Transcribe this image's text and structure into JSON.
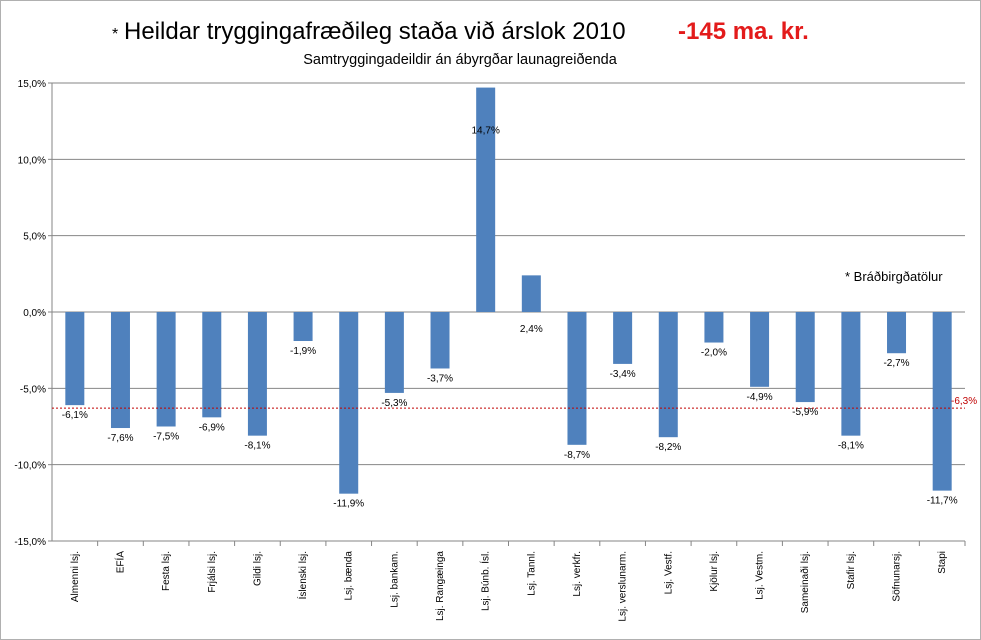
{
  "chart_data": {
    "type": "bar",
    "title_marker": "*",
    "title": "Heildar tryggingafræðileg staða við árslok 2010",
    "title_total": "-145 ma. kr.",
    "subtitle": "Samtryggingadeildir án ábyrgðar launagreiðenda",
    "note": "* Bráðbirgðatölur",
    "categories": [
      "Almenni lsj.",
      "EFÍA",
      "Festa lsj.",
      "Frjálsi lsj.",
      "Gildi lsj.",
      "Íslenski lsj.",
      "Lsj. bænda",
      "Lsj. bankam.",
      "Lsj. Rangæinga",
      "Lsj. Búnb. Ísl.",
      "Lsj. Tannl.",
      "Lsj. verkfr.",
      "Lsj. verslunarm.",
      "Lsj. Vestf.",
      "Kjölur lsj.",
      "Lsj. Vestm.",
      "Sameinaði lsj.",
      "Stafir lsj.",
      "Söfnunarsj.",
      "Stapi"
    ],
    "values": [
      -6.1,
      -7.6,
      -7.5,
      -6.9,
      -8.1,
      -1.9,
      -11.9,
      -5.3,
      -3.7,
      14.7,
      2.4,
      -8.7,
      -3.4,
      -8.2,
      -2.0,
      -4.9,
      -5.9,
      -8.1,
      -2.7,
      -11.7
    ],
    "value_labels": [
      "-6,1%",
      "-7,6%",
      "-7,5%",
      "-6,9%",
      "-8,1%",
      "-1,9%",
      "-11,9%",
      "-5,3%",
      "-3,7%",
      "14,7%",
      "2,4%",
      "-8,7%",
      "-3,4%",
      "-8,2%",
      "-2,0%",
      "-4,9%",
      "-5,9%",
      "-8,1%",
      "-2,7%",
      "-11,7%"
    ],
    "ylim": [
      -15,
      15
    ],
    "yticks": [
      15,
      10,
      5,
      0,
      -5,
      -10,
      -15
    ],
    "ytick_labels": [
      "15,0%",
      "10,0%",
      "5,0%",
      "0,0%",
      "-5,0%",
      "-10,0%",
      "-15,0%"
    ],
    "reference_line": {
      "value": -6.3,
      "label": "-6,3%"
    },
    "grid": true,
    "colors": {
      "bar": "#4f81bd",
      "grid": "#868686",
      "reference": "#c00000",
      "title_total": "#e31b1b"
    }
  }
}
